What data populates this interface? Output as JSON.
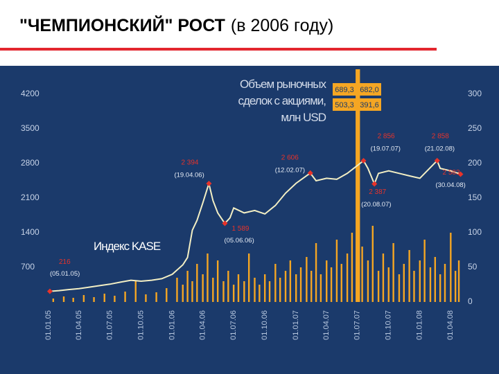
{
  "title": "\"ЧЕМПИОНСКИЙ\" РОСТ",
  "subtitle": "(в 2006 году)",
  "chart_data": {
    "type": "line-bar",
    "grid": false,
    "xlim": [
      "01.01.05",
      "01.05.08"
    ],
    "xticks": [
      "01.01.05",
      "01.04.05",
      "01.07.05",
      "01.10.05",
      "01.01.06",
      "01.04.06",
      "01.07.06",
      "01.10.06",
      "01.01.07",
      "01.04.07",
      "01.07.07",
      "01.10.07",
      "01.01.08",
      "01.04.08"
    ],
    "ylim": [
      0,
      4200
    ],
    "yticks": [
      700,
      1400,
      2100,
      2800,
      3500,
      4200
    ],
    "y2lim": [
      0,
      300
    ],
    "y2ticks": [
      0,
      50,
      100,
      150,
      200,
      250,
      300
    ],
    "series": [
      {
        "name": "Объем рыночных сделок с акциями, млн USD",
        "type": "bar",
        "axis": "y2",
        "color": "#f5a623",
        "x": [
          "15.01.05",
          "15.02.05",
          "15.03.05",
          "15.04.05",
          "15.05.05",
          "15.06.05",
          "15.07.05",
          "15.08.05",
          "15.09.05",
          "15.10.05",
          "15.11.05",
          "15.12.05",
          "15.01.06",
          "01.02.06",
          "15.02.06",
          "01.03.06",
          "15.03.06",
          "01.04.06",
          "15.04.06",
          "01.05.06",
          "15.05.06",
          "01.06.06",
          "15.06.06",
          "01.07.06",
          "15.07.06",
          "01.08.06",
          "15.08.06",
          "01.09.06",
          "15.09.06",
          "01.10.06",
          "15.10.06",
          "01.11.06",
          "15.11.06",
          "01.12.06",
          "15.12.06",
          "01.01.07",
          "15.01.07",
          "01.02.07",
          "15.02.07",
          "01.03.07",
          "15.03.07",
          "01.04.07",
          "15.04.07",
          "01.05.07",
          "15.05.07",
          "01.06.07",
          "15.06.07",
          "28.06.07",
          "30.06.07",
          "03.07.07",
          "06.07.07",
          "15.07.07",
          "01.08.07",
          "15.08.07",
          "01.09.07",
          "15.09.07",
          "01.10.07",
          "15.10.07",
          "01.11.07",
          "15.11.07",
          "01.12.07",
          "15.12.07",
          "01.01.08",
          "15.01.08",
          "01.02.08",
          "15.02.08",
          "01.03.08",
          "15.03.08",
          "01.04.08",
          "15.04.08",
          "25.04.08"
        ],
        "values": [
          5,
          8,
          6,
          10,
          7,
          12,
          9,
          15,
          30,
          11,
          14,
          20,
          35,
          25,
          45,
          30,
          55,
          40,
          70,
          35,
          60,
          30,
          45,
          25,
          40,
          30,
          70,
          35,
          25,
          40,
          30,
          55,
          35,
          45,
          60,
          40,
          50,
          65,
          45,
          85,
          40,
          60,
          50,
          90,
          55,
          70,
          100,
          689.3,
          682.0,
          503.3,
          391.6,
          80,
          60,
          110,
          45,
          70,
          50,
          85,
          40,
          55,
          75,
          45,
          60,
          90,
          50,
          65,
          40,
          55,
          100,
          45,
          60
        ],
        "value_labels": [
          null,
          null,
          null,
          null,
          null,
          null,
          null,
          null,
          null,
          null,
          null,
          null,
          null,
          null,
          null,
          null,
          null,
          null,
          null,
          null,
          null,
          null,
          null,
          null,
          null,
          null,
          null,
          null,
          null,
          null,
          null,
          null,
          null,
          null,
          null,
          null,
          null,
          null,
          null,
          null,
          null,
          null,
          null,
          null,
          null,
          null,
          null,
          "689,3",
          "682,0",
          "503,3",
          "391,6",
          null,
          null,
          null,
          null,
          null,
          null,
          null,
          null,
          null,
          null,
          null,
          null,
          null,
          null,
          null,
          null,
          null,
          null,
          null,
          null
        ]
      },
      {
        "name": "Индекс KASE",
        "type": "line",
        "axis": "y",
        "color": "#f3efc4",
        "x": [
          "05.01.05",
          "01.02.05",
          "01.03.05",
          "01.04.05",
          "01.05.05",
          "01.06.05",
          "01.07.05",
          "01.08.05",
          "01.09.05",
          "01.10.05",
          "01.11.05",
          "01.12.05",
          "01.01.06",
          "01.02.06",
          "15.02.06",
          "01.03.06",
          "15.03.06",
          "01.04.06",
          "19.04.06",
          "01.05.06",
          "15.05.06",
          "05.06.06",
          "20.06.06",
          "01.07.06",
          "01.08.06",
          "01.09.06",
          "01.10.06",
          "01.11.06",
          "01.12.06",
          "01.01.07",
          "12.02.07",
          "01.03.07",
          "01.04.07",
          "01.05.07",
          "01.06.07",
          "19.07.07",
          "01.08.07",
          "20.08.07",
          "01.09.07",
          "01.10.07",
          "01.11.07",
          "01.12.07",
          "01.01.08",
          "21.02.08",
          "01.03.08",
          "01.04.08",
          "30.04.08"
        ],
        "values": [
          216,
          230,
          250,
          270,
          300,
          330,
          360,
          400,
          440,
          420,
          440,
          470,
          560,
          750,
          900,
          1450,
          1650,
          2000,
          2394,
          2050,
          1800,
          1589,
          1700,
          1900,
          1800,
          1850,
          1780,
          1950,
          2200,
          2400,
          2606,
          2450,
          2500,
          2480,
          2600,
          2856,
          2700,
          2387,
          2600,
          2650,
          2600,
          2550,
          2500,
          2858,
          2700,
          2650,
          2583
        ]
      }
    ],
    "annotations": [
      {
        "x": "05.01.05",
        "value": 216,
        "label": "216",
        "date": "(05.01.05)"
      },
      {
        "x": "19.04.06",
        "value": 2394,
        "label": "2 394",
        "date": "(19.04.06)"
      },
      {
        "x": "05.06.06",
        "value": 1589,
        "label": "1 589",
        "date": "(05.06.06)"
      },
      {
        "x": "12.02.07",
        "value": 2606,
        "label": "2 606",
        "date": "(12.02.07)"
      },
      {
        "x": "19.07.07",
        "value": 2856,
        "label": "2 856",
        "date": "(19.07.07)"
      },
      {
        "x": "20.08.07",
        "value": 2387,
        "label": "2 387",
        "date": "(20.08.07)"
      },
      {
        "x": "21.02.08",
        "value": 2858,
        "label": "2 858",
        "date": "(21.02.08)"
      },
      {
        "x": "30.04.08",
        "value": 2583,
        "label": "2 583",
        "date": "(30.04.08)"
      }
    ]
  }
}
